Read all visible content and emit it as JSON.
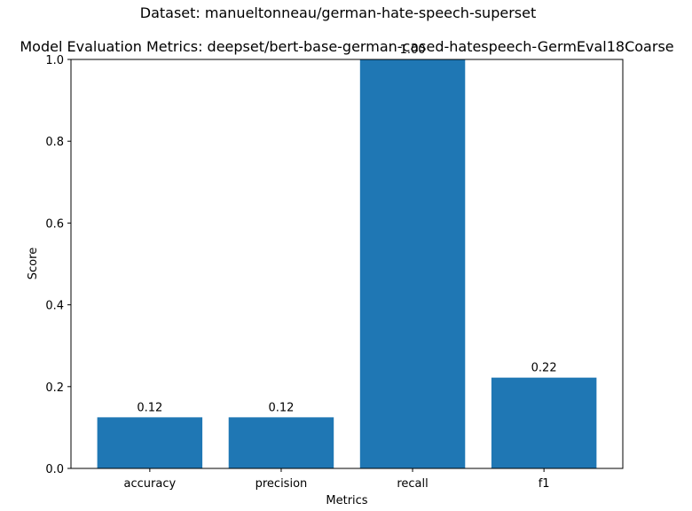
{
  "chart_data": {
    "type": "bar",
    "suptitle": "Dataset: manueltonneau/german-hate-speech-superset",
    "title": "Model Evaluation Metrics: deepset/bert-base-german-cased-hatespeech-GermEval18Coarse",
    "xlabel": "Metrics",
    "ylabel": "Score",
    "ylim": [
      0,
      1.0
    ],
    "yticks": [
      "0.0",
      "0.2",
      "0.4",
      "0.6",
      "0.8",
      "1.0"
    ],
    "categories": [
      "accuracy",
      "precision",
      "recall",
      "f1"
    ],
    "values": [
      0.125,
      0.125,
      1.0,
      0.222
    ],
    "value_labels": [
      "0.12",
      "0.12",
      "1.00",
      "0.22"
    ],
    "bar_color": "#1f77b4",
    "grid": false,
    "legend": "none"
  }
}
